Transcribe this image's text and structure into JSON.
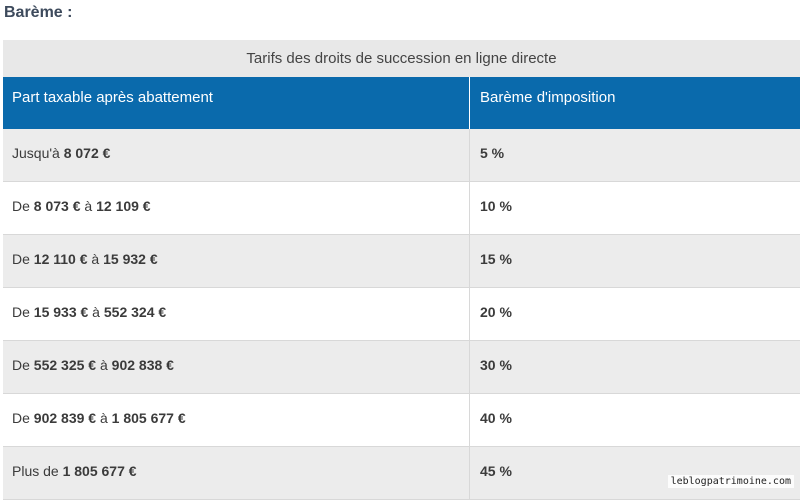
{
  "heading": "Barème :",
  "table": {
    "caption": "Tarifs des droits de succession en ligne directe",
    "headers": [
      "Part taxable après abattement",
      "Barème d'imposition"
    ],
    "rows": [
      {
        "prefix": "Jusqu'à ",
        "from": "8 072 €",
        "mid": "",
        "to": "",
        "rate": "5 %"
      },
      {
        "prefix": "De ",
        "from": "8 073 €",
        "mid": " à ",
        "to": "12 109 €",
        "rate": "10 %"
      },
      {
        "prefix": "De ",
        "from": "12 110 €",
        "mid": " à ",
        "to": "15 932 €",
        "rate": "15 %"
      },
      {
        "prefix": "De ",
        "from": "15 933 €",
        "mid": " à ",
        "to": "552 324 €",
        "rate": "20 %"
      },
      {
        "prefix": "De ",
        "from": "552 325 €",
        "mid": " à ",
        "to": "902 838 €",
        "rate": "30 %"
      },
      {
        "prefix": "De ",
        "from": "902 839 €",
        "mid": " à ",
        "to": "1 805 677 €",
        "rate": "40 %"
      },
      {
        "prefix": "Plus de ",
        "from": "1 805 677 €",
        "mid": "",
        "to": "",
        "rate": "45 %"
      }
    ]
  },
  "watermark": "leblogpatrimoine.com"
}
